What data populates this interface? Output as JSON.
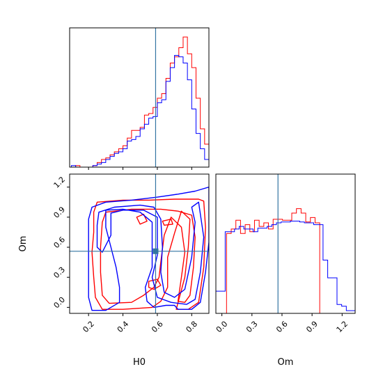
{
  "chart_data": {
    "type": "corner",
    "parameters": [
      "H0",
      "Om"
    ],
    "truth": {
      "H0": 0.59,
      "Om": 0.56
    },
    "truth_color": "#3274a1",
    "colors": {
      "red": "#ff0000",
      "blue": "#0000ff"
    },
    "grid": false,
    "panels": [
      {
        "id": "hist-h0",
        "type": "step-histogram",
        "xlim": [
          0.09,
          0.9
        ],
        "bin_width": 0.025,
        "series": [
          {
            "name": "",
            "color": "#ff0000",
            "x": [
              0.125,
              0.225,
              0.25,
              0.275,
              0.3,
              0.325,
              0.35,
              0.375,
              0.4,
              0.425,
              0.45,
              0.475,
              0.5,
              0.525,
              0.55,
              0.575,
              0.6,
              0.625,
              0.65,
              0.675,
              0.7,
              0.725,
              0.75,
              0.775,
              0.8,
              0.825,
              0.85,
              0.875
            ],
            "values": [
              1,
              1,
              3,
              5,
              6,
              8,
              10,
              12,
              14,
              19,
              24,
              24,
              26,
              34,
              35,
              39,
              45,
              48,
              58,
              68,
              72,
              78,
              85,
              74,
              65,
              45,
              25,
              15
            ]
          },
          {
            "name": "",
            "color": "#0000ff",
            "x": [
              0.1,
              0.225,
              0.25,
              0.275,
              0.3,
              0.325,
              0.35,
              0.375,
              0.4,
              0.425,
              0.45,
              0.475,
              0.5,
              0.525,
              0.55,
              0.575,
              0.6,
              0.625,
              0.65,
              0.675,
              0.7,
              0.725,
              0.75,
              0.775,
              0.8,
              0.825,
              0.85,
              0.875
            ],
            "values": [
              1,
              1,
              2,
              3,
              5,
              7,
              9,
              10,
              12,
              17,
              18,
              20,
              25,
              28,
              32,
              33,
              42,
              44,
              56,
              65,
              73,
              72,
              68,
              57,
              38,
              22,
              12,
              5
            ]
          }
        ]
      },
      {
        "id": "contour-h0-om",
        "type": "contour",
        "xlim": [
          0.09,
          0.9
        ],
        "ylim": [
          -0.06,
          1.33
        ],
        "xlabel": "H0",
        "ylabel": "Om",
        "xticks": [
          0.2,
          0.4,
          0.6,
          0.8
        ],
        "xtick_labels": [
          "0.2",
          "0.4",
          "0.6",
          "0.8"
        ],
        "yticks": [
          0.0,
          0.3,
          0.6,
          0.9,
          1.2
        ],
        "ytick_labels": [
          "0.0",
          "0.3",
          "0.6",
          "0.9",
          "1.2"
        ],
        "series": [
          {
            "name": "",
            "color": "#ff0000",
            "contours": [
              [
                [
                  0.25,
                  1.05
                ],
                [
                  0.4,
                  1.07
                ],
                [
                  0.55,
                  1.07
                ],
                [
                  0.7,
                  1.08
                ],
                [
                  0.84,
                  1.08
                ],
                [
                  0.87,
                  1.06
                ],
                [
                  0.88,
                  0.8
                ],
                [
                  0.87,
                  0.4
                ],
                [
                  0.84,
                  0.05
                ],
                [
                  0.78,
                  -0.02
                ],
                [
                  0.71,
                  -0.02
                ],
                [
                  0.76,
                  0.3
                ],
                [
                  0.78,
                  0.6
                ],
                [
                  0.79,
                  0.88
                ],
                [
                  0.74,
                  0.96
                ],
                [
                  0.7,
                  0.74
                ],
                [
                  0.66,
                  0.5
                ],
                [
                  0.66,
                  0.2
                ],
                [
                  0.62,
                  0.06
                ],
                [
                  0.57,
                  0.0
                ],
                [
                  0.4,
                  -0.02
                ],
                [
                  0.28,
                  -0.02
                ],
                [
                  0.24,
                  0.1
                ],
                [
                  0.23,
                  0.3
                ],
                [
                  0.22,
                  0.55
                ],
                [
                  0.23,
                  0.75
                ],
                [
                  0.23,
                  0.95
                ],
                [
                  0.25,
                  1.05
                ]
              ],
              [
                [
                  0.3,
                  0.95
                ],
                [
                  0.45,
                  0.98
                ],
                [
                  0.62,
                  0.98
                ],
                [
                  0.72,
                  0.96
                ],
                [
                  0.8,
                  0.92
                ],
                [
                  0.82,
                  0.7
                ],
                [
                  0.81,
                  0.4
                ],
                [
                  0.79,
                  0.12
                ],
                [
                  0.76,
                  0.05
                ],
                [
                  0.72,
                  0.06
                ],
                [
                  0.74,
                  0.3
                ],
                [
                  0.76,
                  0.55
                ],
                [
                  0.74,
                  0.8
                ],
                [
                  0.68,
                  0.9
                ],
                [
                  0.64,
                  0.72
                ],
                [
                  0.62,
                  0.45
                ],
                [
                  0.61,
                  0.3
                ],
                [
                  0.58,
                  0.2
                ],
                [
                  0.52,
                  0.12
                ],
                [
                  0.45,
                  0.05
                ],
                [
                  0.32,
                  0.04
                ],
                [
                  0.28,
                  0.12
                ],
                [
                  0.27,
                  0.35
                ],
                [
                  0.27,
                  0.6
                ],
                [
                  0.28,
                  0.85
                ],
                [
                  0.3,
                  0.95
                ]
              ],
              [
                [
                  0.55,
                  0.26
                ],
                [
                  0.6,
                  0.28
                ],
                [
                  0.62,
                  0.22
                ],
                [
                  0.58,
                  0.18
                ],
                [
                  0.55,
                  0.2
                ],
                [
                  0.55,
                  0.26
                ]
              ],
              [
                [
                  0.48,
                  0.9
                ],
                [
                  0.52,
                  0.93
                ],
                [
                  0.54,
                  0.86
                ],
                [
                  0.5,
                  0.83
                ],
                [
                  0.48,
                  0.9
                ]
              ],
              [
                [
                  0.63,
                  0.86
                ],
                [
                  0.68,
                  0.88
                ],
                [
                  0.69,
                  0.83
                ],
                [
                  0.64,
                  0.82
                ],
                [
                  0.63,
                  0.86
                ]
              ]
            ]
          },
          {
            "name": "",
            "color": "#0000ff",
            "contours": [
              [
                [
                  0.2,
                  0.88
                ],
                [
                  0.22,
                  1.0
                ],
                [
                  0.3,
                  1.05
                ],
                [
                  0.45,
                  1.07
                ],
                [
                  0.6,
                  1.1
                ],
                [
                  0.72,
                  1.13
                ],
                [
                  0.82,
                  1.16
                ],
                [
                  0.9,
                  1.2
                ],
                [
                  0.9,
                  0.65
                ],
                [
                  0.88,
                  0.35
                ],
                [
                  0.85,
                  0.05
                ],
                [
                  0.8,
                  -0.02
                ],
                [
                  0.72,
                  -0.02
                ],
                [
                  0.7,
                  0.02
                ],
                [
                  0.65,
                  0.02
                ],
                [
                  0.58,
                  0.0
                ],
                [
                  0.54,
                  0.06
                ],
                [
                  0.53,
                  0.2
                ],
                [
                  0.57,
                  0.4
                ],
                [
                  0.57,
                  0.85
                ],
                [
                  0.5,
                  0.95
                ],
                [
                  0.4,
                  0.98
                ],
                [
                  0.3,
                  0.97
                ],
                [
                  0.3,
                  0.8
                ],
                [
                  0.33,
                  0.6
                ],
                [
                  0.36,
                  0.4
                ],
                [
                  0.38,
                  0.2
                ],
                [
                  0.38,
                  0.05
                ],
                [
                  0.3,
                  -0.03
                ],
                [
                  0.22,
                  -0.03
                ],
                [
                  0.2,
                  0.1
                ],
                [
                  0.2,
                  0.4
                ],
                [
                  0.2,
                  0.7
                ],
                [
                  0.2,
                  0.88
                ]
              ],
              [
                [
                  0.25,
                  0.82
                ],
                [
                  0.26,
                  0.95
                ],
                [
                  0.35,
                  1.0
                ],
                [
                  0.5,
                  1.02
                ],
                [
                  0.58,
                  1.0
                ],
                [
                  0.62,
                  0.88
                ],
                [
                  0.63,
                  0.6
                ],
                [
                  0.62,
                  0.35
                ],
                [
                  0.64,
                  0.15
                ],
                [
                  0.7,
                  0.1
                ],
                [
                  0.76,
                  0.18
                ],
                [
                  0.8,
                  0.5
                ],
                [
                  0.82,
                  0.85
                ],
                [
                  0.8,
                  1.0
                ],
                [
                  0.84,
                  1.05
                ],
                [
                  0.87,
                  0.7
                ],
                [
                  0.85,
                  0.35
                ],
                [
                  0.82,
                  0.08
                ],
                [
                  0.77,
                  0.03
                ],
                [
                  0.68,
                  0.05
                ],
                [
                  0.6,
                  0.1
                ],
                [
                  0.57,
                  0.3
                ],
                [
                  0.6,
                  0.52
                ],
                [
                  0.6,
                  0.9
                ],
                [
                  0.52,
                  0.97
                ],
                [
                  0.4,
                  0.97
                ],
                [
                  0.33,
                  0.94
                ],
                [
                  0.33,
                  0.72
                ],
                [
                  0.28,
                  0.55
                ],
                [
                  0.25,
                  0.6
                ],
                [
                  0.25,
                  0.82
                ]
              ]
            ]
          }
        ]
      },
      {
        "id": "hist-om",
        "type": "step-histogram",
        "xlim": [
          -0.06,
          1.33
        ],
        "xlabel": "Om",
        "xticks": [
          0.0,
          0.3,
          0.6,
          0.9,
          1.2
        ],
        "xtick_labels": [
          "0.0",
          "0.3",
          "0.6",
          "0.9",
          "1.2"
        ],
        "bin_width": 0.0465,
        "series": [
          {
            "name": "",
            "color": "#ff0000",
            "x": [
              0.0,
              0.0465,
              0.093,
              0.1395,
              0.186,
              0.2325,
              0.279,
              0.3255,
              0.372,
              0.4185,
              0.465,
              0.5115,
              0.558,
              0.6045,
              0.651,
              0.6975,
              0.744,
              0.7905,
              0.837,
              0.8835,
              0.93,
              0.9765
            ],
            "values": [
              0,
              90,
              95,
              105,
              90,
              100,
              92,
              105,
              98,
              102,
              95,
              106,
              106,
              105,
              105,
              113,
              118,
              113,
              103,
              108,
              102,
              0
            ]
          },
          {
            "name": "",
            "color": "#0000ff",
            "x": [
              -0.06,
              -0.0135,
              0.033,
              0.0795,
              0.126,
              0.1725,
              0.219,
              0.2655,
              0.312,
              0.3585,
              0.405,
              0.4515,
              0.498,
              0.5445,
              0.591,
              0.6375,
              0.684,
              0.7305,
              0.777,
              0.8235,
              0.87,
              0.9165,
              0.963,
              1.0095,
              1.056,
              1.1025,
              1.149,
              1.1955,
              1.242,
              1.2885
            ],
            "values": [
              25,
              25,
              92,
              92,
              95,
              98,
              95,
              95,
              92,
              96,
              96,
              98,
              100,
              102,
              103,
              103,
              104,
              104,
              103,
              102,
              102,
              100,
              100,
              60,
              40,
              40,
              10,
              8,
              3,
              3
            ]
          }
        ]
      }
    ]
  }
}
